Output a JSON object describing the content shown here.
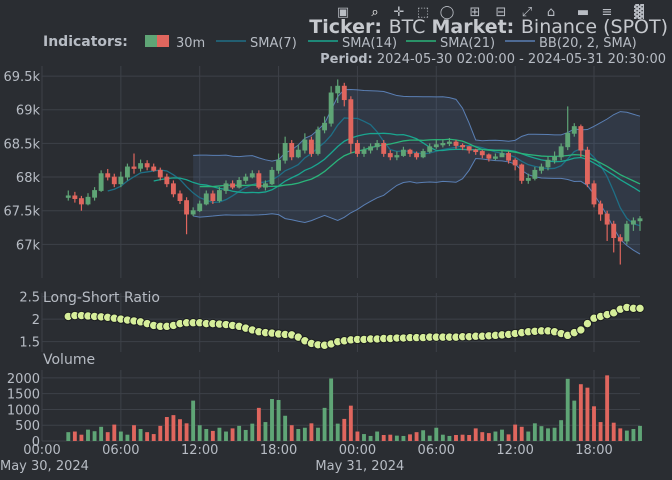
{
  "header": {
    "ticker_prefix": "Ticker:",
    "ticker_value": "BTC",
    "market_prefix": "Market:",
    "market_value": "Binance (SPOT)",
    "period_prefix": "Period:",
    "period_value": "2024-05-30 02:00:00 - 2024-05-31 20:30:00"
  },
  "legend": {
    "title": "Indicators:",
    "items": [
      "30m",
      "SMA(7)",
      "SMA(14)",
      "SMA(21)",
      "BB(20, 2, SMA)"
    ]
  },
  "colors": {
    "background": "#2a2d32",
    "plot_bg": "#2a2d32",
    "grid": "#3d4148",
    "up": "#5fa576",
    "down": "#e0665e",
    "sma7": "#1f6f86",
    "sma14": "#1aa690",
    "sma21": "#2ab47a",
    "bb": "#5a7fb4",
    "bb_fill": "rgba(90,127,180,0.16)",
    "ratio_fill": "#d6ee9a",
    "ratio_stroke": "#1b1d20",
    "text": "#b7bcc4",
    "title_text": "#c6c9ce"
  },
  "modebar": {
    "icons": [
      "camera-icon",
      "zoom-icon",
      "pan-icon",
      "box-select-icon",
      "lasso-icon",
      "zoom-in-icon",
      "zoom-out-icon",
      "autoscale-icon",
      "home-icon",
      "spike-lines-icon",
      "compare-hover-icon",
      "plotly-logo-icon"
    ]
  },
  "chart_data": [
    {
      "type": "candlestick",
      "title": "",
      "ylim": [
        66500,
        69650
      ],
      "y_ticks": [
        67000,
        67500,
        68000,
        68500,
        69000,
        69500
      ],
      "y_tick_labels": [
        "67k",
        "67.5k",
        "68k",
        "68.5k",
        "69k",
        "69.5k"
      ],
      "x_tick_labels": [
        "00:00",
        "06:00",
        "12:00",
        "18:00",
        "00:00",
        "06:00",
        "12:00",
        "18:00"
      ],
      "x_tick_hours": [
        0,
        6,
        12,
        18,
        24,
        30,
        36,
        42
      ],
      "x_date_labels": [
        {
          "hour": 0,
          "label": "May 30, 2024"
        },
        {
          "hour": 24,
          "label": "May 31, 2024"
        }
      ],
      "x_range_hours": [
        0,
        45.5
      ],
      "start_hour": 2,
      "interval_hours": 0.5,
      "close": [
        67720,
        67680,
        67600,
        67700,
        67800,
        68050,
        68000,
        67900,
        68000,
        68150,
        68130,
        68200,
        68150,
        68100,
        68000,
        67900,
        67750,
        67650,
        67450,
        67500,
        67600,
        67750,
        67650,
        67800,
        67900,
        67850,
        67950,
        68000,
        68050,
        67850,
        67900,
        68100,
        68250,
        68500,
        68300,
        68400,
        68550,
        68350,
        68700,
        68800,
        69250,
        69350,
        69150,
        68500,
        68350,
        68400,
        68450,
        68500,
        68350,
        68300,
        68320,
        68400,
        68350,
        68300,
        68380,
        68450,
        68480,
        68500,
        68520,
        68470,
        68450,
        68400,
        68380,
        68330,
        68280,
        68300,
        68350,
        68250,
        68180,
        67950,
        67980,
        68100,
        68150,
        68250,
        68300,
        68450,
        68650,
        68750,
        68400,
        67900,
        67600,
        67450,
        67300,
        67100,
        67050,
        67300,
        67350,
        67380
      ],
      "open": [
        67700,
        67720,
        67680,
        67600,
        67700,
        67800,
        68050,
        68000,
        67900,
        68000,
        68150,
        68130,
        68200,
        68150,
        68100,
        68000,
        67900,
        67750,
        67650,
        67450,
        67500,
        67600,
        67750,
        67650,
        67800,
        67900,
        67850,
        67950,
        68000,
        68050,
        67850,
        67900,
        68100,
        68250,
        68500,
        68300,
        68400,
        68550,
        68350,
        68700,
        68800,
        69250,
        69350,
        69150,
        68500,
        68350,
        68400,
        68450,
        68500,
        68350,
        68300,
        68320,
        68400,
        68350,
        68300,
        68380,
        68450,
        68480,
        68500,
        68520,
        68470,
        68450,
        68400,
        68380,
        68330,
        68280,
        68300,
        68350,
        68250,
        68180,
        67950,
        67980,
        68100,
        68150,
        68250,
        68300,
        68450,
        68650,
        68750,
        68400,
        67900,
        67600,
        67450,
        67300,
        67100,
        67050,
        67300,
        67350
      ],
      "high": [
        67800,
        67780,
        67720,
        67760,
        67850,
        68100,
        68120,
        68050,
        68080,
        68200,
        68350,
        68260,
        68250,
        68200,
        68140,
        68050,
        67950,
        67800,
        67700,
        67550,
        67650,
        67800,
        67800,
        67850,
        67950,
        67950,
        68000,
        68050,
        68100,
        68100,
        67950,
        68150,
        68350,
        68600,
        68550,
        68480,
        68650,
        68600,
        68750,
        68900,
        69350,
        69450,
        69400,
        69200,
        68550,
        68450,
        68500,
        68550,
        68550,
        68400,
        68380,
        68450,
        68420,
        68380,
        68420,
        68500,
        68550,
        68560,
        68580,
        68550,
        68500,
        68460,
        68420,
        68400,
        68350,
        68350,
        68400,
        68380,
        68280,
        68200,
        68050,
        68150,
        68200,
        68300,
        68380,
        68500,
        69050,
        68800,
        68780,
        68450,
        67950,
        67650,
        67500,
        67350,
        67150,
        67350,
        67400,
        67420
      ],
      "low": [
        67650,
        67620,
        67500,
        67580,
        67650,
        67780,
        67950,
        67850,
        67850,
        67950,
        68050,
        68080,
        68100,
        68080,
        67950,
        67850,
        67700,
        67600,
        67150,
        67420,
        67480,
        67580,
        67600,
        67620,
        67750,
        67820,
        67830,
        67900,
        67980,
        67820,
        67800,
        67880,
        68050,
        68200,
        68250,
        68280,
        68350,
        68300,
        68320,
        68650,
        68750,
        69100,
        69050,
        68350,
        68300,
        68300,
        68350,
        68400,
        68300,
        68250,
        68250,
        68300,
        68300,
        68260,
        68280,
        68350,
        68420,
        68440,
        68460,
        68420,
        68400,
        68350,
        68330,
        68280,
        68230,
        68250,
        68300,
        68200,
        68100,
        67900,
        67900,
        67950,
        68050,
        68100,
        68200,
        68250,
        68400,
        68600,
        68300,
        67850,
        67550,
        67350,
        67050,
        66880,
        66700,
        67000,
        67200,
        67200
      ]
    },
    {
      "type": "line-scatter",
      "title": "Long-Short Ratio",
      "ylim": [
        1.27,
        2.58
      ],
      "y_ticks": [
        1.5,
        2.0,
        2.5
      ],
      "y_tick_labels": [
        "1.5",
        "2",
        "2.5"
      ],
      "values": [
        2.06,
        2.08,
        2.08,
        2.07,
        2.06,
        2.05,
        2.04,
        2.02,
        2.0,
        1.98,
        1.96,
        1.94,
        1.9,
        1.86,
        1.84,
        1.84,
        1.86,
        1.9,
        1.92,
        1.92,
        1.92,
        1.9,
        1.9,
        1.89,
        1.88,
        1.86,
        1.84,
        1.8,
        1.76,
        1.72,
        1.7,
        1.69,
        1.67,
        1.66,
        1.65,
        1.6,
        1.52,
        1.46,
        1.43,
        1.42,
        1.45,
        1.5,
        1.52,
        1.54,
        1.55,
        1.55,
        1.56,
        1.56,
        1.57,
        1.57,
        1.58,
        1.58,
        1.59,
        1.59,
        1.59,
        1.6,
        1.6,
        1.6,
        1.6,
        1.6,
        1.61,
        1.61,
        1.62,
        1.62,
        1.63,
        1.64,
        1.65,
        1.66,
        1.68,
        1.7,
        1.72,
        1.73,
        1.74,
        1.74,
        1.72,
        1.68,
        1.64,
        1.7,
        1.76,
        1.9,
        2.02,
        2.06,
        2.1,
        2.14,
        2.22,
        2.26,
        2.24,
        2.24
      ]
    },
    {
      "type": "bar",
      "title": "Volume",
      "ylim": [
        0,
        2250
      ],
      "y_ticks": [
        0,
        500,
        1000,
        1500,
        2000
      ],
      "y_tick_labels": [
        "0",
        "500",
        "1000",
        "1500",
        "2000"
      ],
      "values": [
        280,
        300,
        200,
        360,
        310,
        450,
        280,
        520,
        300,
        200,
        500,
        380,
        280,
        220,
        480,
        760,
        820,
        690,
        560,
        1280,
        500,
        380,
        320,
        420,
        300,
        400,
        480,
        350,
        550,
        1050,
        600,
        1330,
        1300,
        800,
        500,
        380,
        420,
        560,
        420,
        1050,
        1980,
        550,
        700,
        1120,
        300,
        220,
        160,
        300,
        190,
        200,
        170,
        160,
        210,
        280,
        340,
        170,
        420,
        200,
        160,
        190,
        200,
        190,
        400,
        280,
        250,
        300,
        360,
        210,
        520,
        450,
        300,
        560,
        470,
        400,
        420,
        660,
        1970,
        1280,
        1800,
        1690,
        1100,
        600,
        2080,
        580,
        400,
        330,
        380,
        480
      ]
    }
  ]
}
